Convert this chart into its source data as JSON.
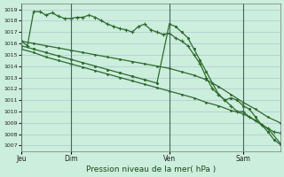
{
  "bg_color": "#cceedd",
  "grid_color": "#aabbcc",
  "line_color": "#2d6a2d",
  "title": "Pression niveau de la mer( hPa )",
  "ylim": [
    1006.5,
    1019.5
  ],
  "yticks": [
    1007,
    1008,
    1009,
    1010,
    1011,
    1012,
    1013,
    1014,
    1015,
    1016,
    1017,
    1018,
    1019
  ],
  "xtick_labels": [
    "Jeu",
    "Dim",
    "Ven",
    "Sam"
  ],
  "xtick_positions": [
    0,
    24,
    72,
    108
  ],
  "xlim": [
    0,
    126
  ],
  "vline_positions": [
    0,
    24,
    72,
    108
  ],
  "line1_x": [
    0,
    3,
    6,
    9,
    12,
    15,
    18,
    21,
    24,
    27,
    30,
    33,
    36,
    39,
    42,
    45,
    48,
    51,
    54,
    57,
    60,
    63,
    66,
    69,
    72,
    75,
    78,
    81,
    84,
    87,
    90,
    93,
    96,
    99,
    102,
    105,
    108,
    111,
    114,
    117,
    120,
    123,
    126
  ],
  "line1_y": [
    1016.2,
    1015.8,
    1018.8,
    1018.8,
    1018.5,
    1018.7,
    1018.4,
    1018.2,
    1018.2,
    1018.3,
    1018.3,
    1018.5,
    1018.3,
    1018.0,
    1017.7,
    1017.5,
    1017.3,
    1017.2,
    1017.0,
    1017.5,
    1017.7,
    1017.2,
    1017.0,
    1016.8,
    1016.9,
    1016.5,
    1016.2,
    1015.8,
    1015.0,
    1014.2,
    1013.0,
    1012.0,
    1011.5,
    1011.0,
    1010.5,
    1010.0,
    1010.0,
    1009.5,
    1009.2,
    1008.8,
    1008.5,
    1008.2,
    1008.1
  ],
  "line2_x": [
    0,
    6,
    12,
    18,
    24,
    30,
    36,
    42,
    48,
    54,
    60,
    66,
    72,
    78,
    84,
    90,
    96,
    102,
    108,
    114,
    120,
    126
  ],
  "line2_y": [
    1016.2,
    1016.0,
    1015.8,
    1015.6,
    1015.4,
    1015.2,
    1015.0,
    1014.8,
    1014.6,
    1014.4,
    1014.2,
    1014.0,
    1013.8,
    1013.5,
    1013.2,
    1012.8,
    1012.2,
    1011.5,
    1010.8,
    1010.2,
    1009.5,
    1009.0
  ],
  "line3_x": [
    0,
    6,
    12,
    18,
    24,
    30,
    36,
    42,
    48,
    54,
    60,
    66,
    72,
    75,
    78,
    81,
    84,
    87,
    90,
    93,
    96,
    99,
    102,
    105,
    108,
    111,
    114,
    117,
    120,
    123,
    126
  ],
  "line3_y": [
    1015.8,
    1015.5,
    1015.2,
    1014.9,
    1014.6,
    1014.3,
    1014.0,
    1013.7,
    1013.4,
    1013.1,
    1012.8,
    1012.5,
    1017.7,
    1017.5,
    1017.0,
    1016.5,
    1015.5,
    1014.5,
    1013.5,
    1012.5,
    1011.5,
    1011.0,
    1011.2,
    1011.0,
    1010.5,
    1010.2,
    1009.5,
    1008.8,
    1008.2,
    1007.5,
    1007.1
  ],
  "line4_x": [
    0,
    6,
    12,
    18,
    24,
    30,
    36,
    42,
    48,
    54,
    60,
    66,
    72,
    78,
    84,
    90,
    96,
    102,
    108,
    114,
    120,
    126
  ],
  "line4_y": [
    1015.5,
    1015.2,
    1014.8,
    1014.5,
    1014.2,
    1013.9,
    1013.6,
    1013.3,
    1013.0,
    1012.7,
    1012.4,
    1012.1,
    1011.8,
    1011.5,
    1011.2,
    1010.8,
    1010.5,
    1010.1,
    1009.8,
    1009.2,
    1008.5,
    1007.2
  ]
}
